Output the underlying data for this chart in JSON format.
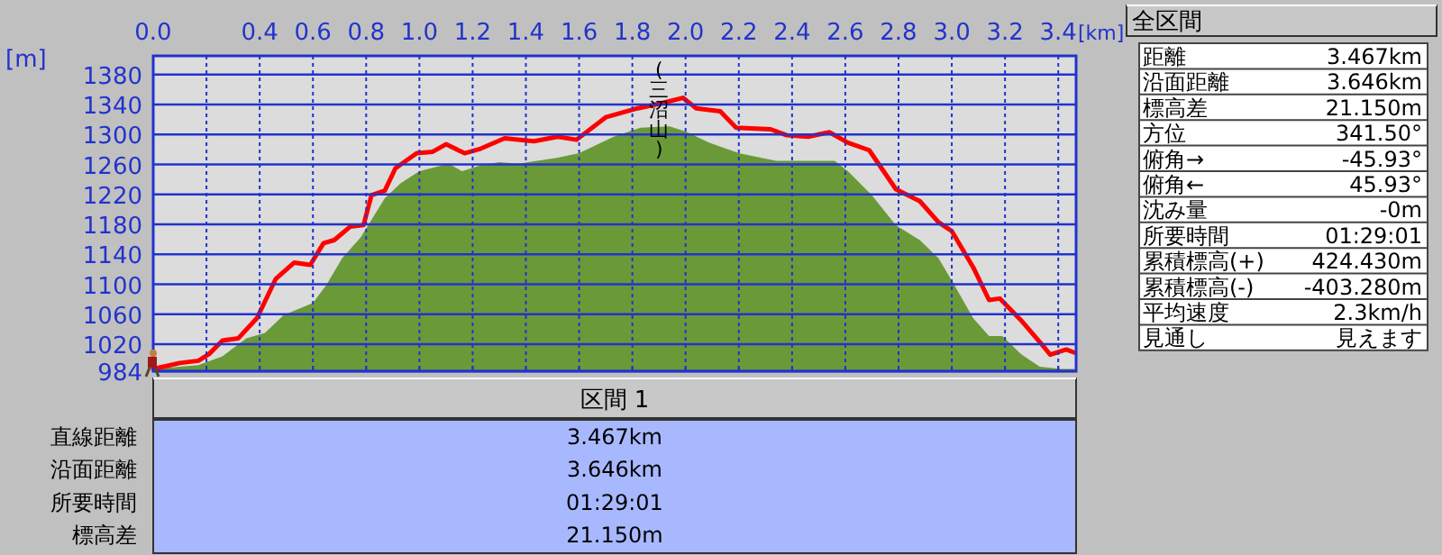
{
  "chart_data": [
    {
      "type": "line",
      "xlabel": "[km]",
      "ylabel": "[m]",
      "grid": true,
      "xlim": [
        0,
        3.467
      ],
      "ylim": [
        984,
        1405
      ],
      "xticks": [
        {
          "value": 0,
          "label": "0.0"
        },
        {
          "value": 0.2,
          "label": null
        },
        0.4,
        0.6,
        0.8,
        {
          "value": 1,
          "label": "1.0"
        },
        1.2,
        1.4,
        1.6,
        1.8,
        {
          "value": 2,
          "label": "2.0"
        },
        2.2,
        2.4,
        2.6,
        2.8,
        {
          "value": 3,
          "label": "3.0"
        },
        3.2,
        3.4
      ],
      "yticks": [
        984,
        1020,
        1060,
        1100,
        1140,
        1180,
        1220,
        1260,
        1300,
        1340,
        1380
      ],
      "annotations": [
        {
          "text": "(三沼山)",
          "x": 1.9,
          "y": 1341
        }
      ],
      "series": [
        {
          "type": "area",
          "color": "#6a9a38",
          "x": [
            0,
            0.17,
            0.26,
            0.35,
            0.42,
            0.49,
            0.6,
            0.65,
            0.71,
            0.78,
            0.87,
            0.93,
            1.0,
            1.11,
            1.16,
            1.23,
            1.3,
            1.37,
            1.52,
            1.6,
            1.73,
            1.83,
            1.94,
            2.0,
            2.09,
            2.2,
            2.34,
            2.56,
            2.61,
            2.7,
            2.79,
            2.88,
            2.95,
            3.01,
            3.08,
            3.14,
            3.19,
            3.26,
            3.33,
            3.41,
            3.46
          ],
          "values": [
            987,
            992,
            1004,
            1028,
            1035,
            1059,
            1075,
            1099,
            1135,
            1163,
            1215,
            1235,
            1251,
            1261,
            1251,
            1259,
            1263,
            1261,
            1269,
            1275,
            1297,
            1309,
            1311,
            1304,
            1289,
            1275,
            1265,
            1265,
            1251,
            1219,
            1179,
            1159,
            1135,
            1099,
            1055,
            1031,
            1031,
            1007,
            990,
            987,
            987
          ]
        },
        {
          "type": "line",
          "color": "#ff0000",
          "x": [
            0,
            0.1,
            0.17,
            0.21,
            0.26,
            0.32,
            0.39,
            0.46,
            0.53,
            0.59,
            0.64,
            0.68,
            0.74,
            0.79,
            0.82,
            0.87,
            0.91,
            0.99,
            1.05,
            1.1,
            1.17,
            1.23,
            1.32,
            1.43,
            1.52,
            1.59,
            1.7,
            1.82,
            1.9,
            1.99,
            2.04,
            2.13,
            2.19,
            2.32,
            2.38,
            2.46,
            2.54,
            2.61,
            2.69,
            2.79,
            2.88,
            2.95,
            3.0,
            3.08,
            3.14,
            3.18,
            3.26,
            3.34,
            3.37,
            3.43,
            3.46
          ],
          "values": [
            987,
            995,
            998,
            1007,
            1025,
            1028,
            1055,
            1107,
            1129,
            1126,
            1155,
            1159,
            1177,
            1179,
            1219,
            1225,
            1255,
            1275,
            1277,
            1287,
            1275,
            1281,
            1295,
            1291,
            1297,
            1293,
            1323,
            1335,
            1341,
            1349,
            1335,
            1331,
            1309,
            1307,
            1299,
            1297,
            1303,
            1289,
            1279,
            1227,
            1211,
            1183,
            1171,
            1123,
            1079,
            1081,
            1052,
            1019,
            1006,
            1013,
            1009
          ]
        }
      ]
    },
    {
      "type": "other",
      "title": "全区間",
      "annotations": [
        "距離",
        "3.467km",
        "沿面距離",
        "3.646km",
        "標高差",
        "21.150m",
        "方位",
        "341.50°",
        "俯角→",
        "-45.93°",
        "俯角←",
        "45.93°",
        "沈み量",
        "-0m",
        "所要時間",
        "01:29:01",
        "累積標高(+)",
        "424.430m",
        "累積標高(-)",
        "-403.280m",
        "平均速度",
        "2.3km/h",
        "見通し",
        "見えます"
      ]
    },
    {
      "type": "other",
      "title": "区間 1",
      "annotations": [
        "直線距離",
        "3.467km",
        "沿面距離",
        "3.646km",
        "所要時間",
        "01:29:01",
        "標高差",
        "21.150m"
      ]
    }
  ]
}
